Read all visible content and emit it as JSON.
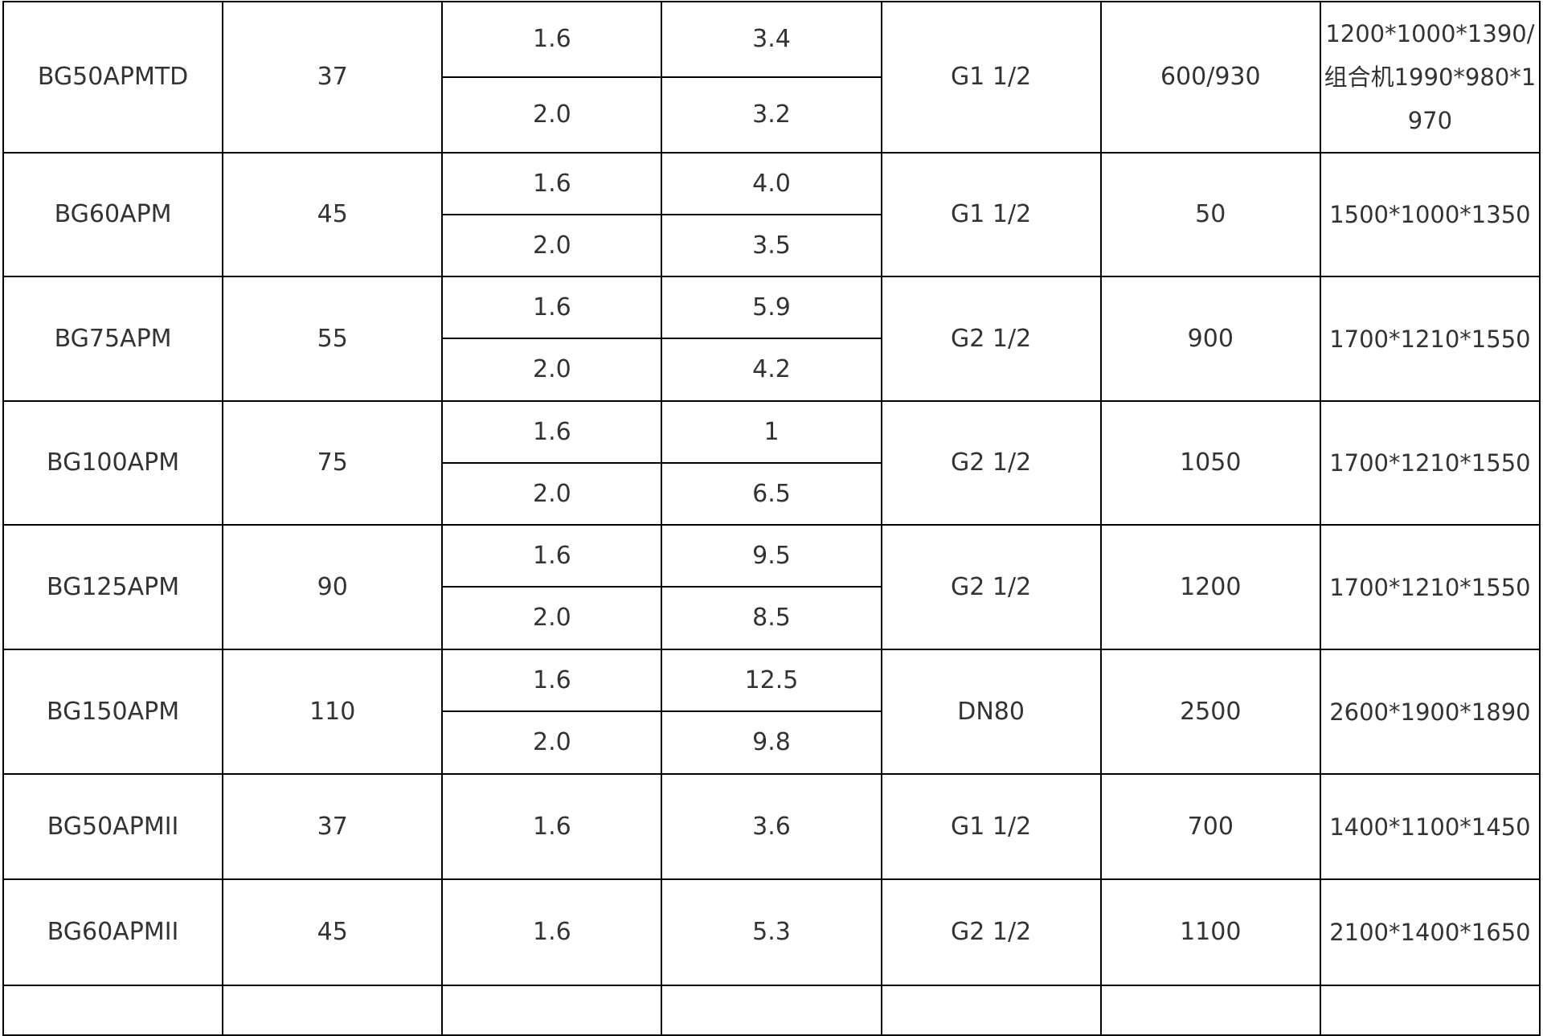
{
  "table": {
    "rows": [
      {
        "model": "BG50APMTD",
        "power": "37",
        "sub": [
          {
            "pressure": "1.6",
            "flow": "3.4"
          },
          {
            "pressure": "2.0",
            "flow": "3.2"
          }
        ],
        "outlet": "G1 1/2",
        "weight": "600/930",
        "dimensions": "1200*1000*1390/组合机1990*980*1970"
      },
      {
        "model": "BG60APM",
        "power": "45",
        "sub": [
          {
            "pressure": "1.6",
            "flow": "4.0"
          },
          {
            "pressure": "2.0",
            "flow": "3.5"
          }
        ],
        "outlet": "G1 1/2",
        "weight": "50",
        "dimensions": "1500*1000*1350"
      },
      {
        "model": "BG75APM",
        "power": "55",
        "sub": [
          {
            "pressure": "1.6",
            "flow": "5.9"
          },
          {
            "pressure": "2.0",
            "flow": "4.2"
          }
        ],
        "outlet": "G2 1/2",
        "weight": "900",
        "dimensions": "1700*1210*1550"
      },
      {
        "model": "BG100APM",
        "power": "75",
        "sub": [
          {
            "pressure": "1.6",
            "flow": "1"
          },
          {
            "pressure": "2.0",
            "flow": "6.5"
          }
        ],
        "outlet": "G2 1/2",
        "weight": "1050",
        "dimensions": "1700*1210*1550"
      },
      {
        "model": "BG125APM",
        "power": "90",
        "sub": [
          {
            "pressure": "1.6",
            "flow": "9.5"
          },
          {
            "pressure": "2.0",
            "flow": "8.5"
          }
        ],
        "outlet": "G2 1/2",
        "weight": "1200",
        "dimensions": "1700*1210*1550"
      },
      {
        "model": "BG150APM",
        "power": "110",
        "sub": [
          {
            "pressure": "1.6",
            "flow": "12.5"
          },
          {
            "pressure": "2.0",
            "flow": "9.8"
          }
        ],
        "outlet": "DN80",
        "weight": "2500",
        "dimensions": "2600*1900*1890"
      },
      {
        "model": "BG50APMII",
        "power": "37",
        "sub": [
          {
            "pressure": "1.6",
            "flow": "3.6"
          }
        ],
        "outlet": "G1 1/2",
        "weight": "700",
        "dimensions": "1400*1100*1450"
      },
      {
        "model": "BG60APMII",
        "power": "45",
        "sub": [
          {
            "pressure": "1.6",
            "flow": "5.3"
          }
        ],
        "outlet": "G2 1/2",
        "weight": "1100",
        "dimensions": "2100*1400*1650"
      }
    ]
  }
}
